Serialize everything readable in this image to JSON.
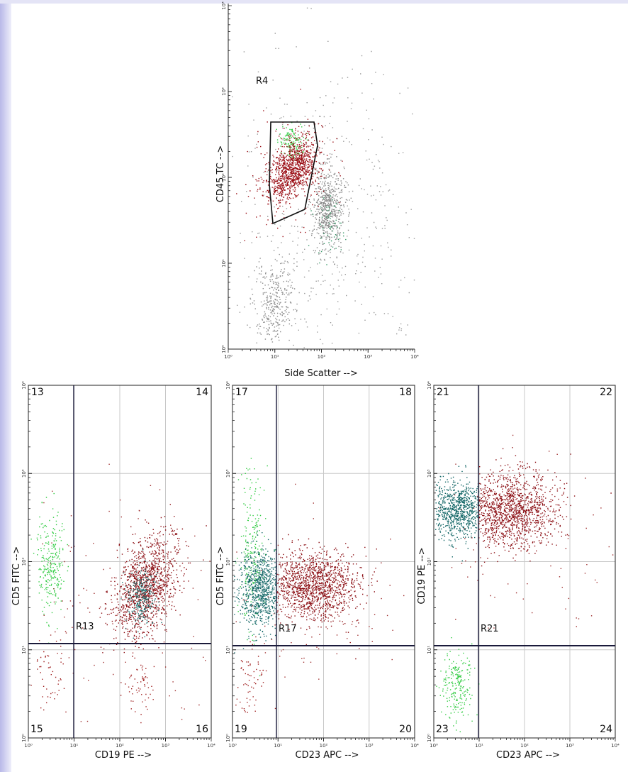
{
  "top_plot": {
    "region_label": "R4",
    "y_axis_label": "CD45 TC -->",
    "x_axis_label": "Side Scatter -->",
    "x_tick_labels": [
      "10⁰",
      "10¹",
      "10²",
      "10³",
      "10⁴"
    ],
    "y_tick_labels": [
      "10⁰",
      "10¹",
      "10²",
      "10³",
      "10⁴"
    ]
  },
  "panels": [
    {
      "quadrants": [
        "13",
        "14",
        "15",
        "16"
      ],
      "region_label": "R13",
      "y_axis_label": "CD5 FITC -->",
      "x_axis_label": "CD19 PE -->",
      "x_tick_labels": [
        "10⁰",
        "10¹",
        "10²",
        "10³",
        "10⁴"
      ],
      "y_tick_labels": [
        "10⁰",
        "10¹",
        "10²",
        "10³",
        "10⁴"
      ]
    },
    {
      "quadrants": [
        "17",
        "18",
        "19",
        "20"
      ],
      "region_label": "R17",
      "y_axis_label": "CD5 FITC -->",
      "x_axis_label": "CD23 APC -->",
      "x_tick_labels": [
        "10⁰",
        "10¹",
        "10²",
        "10³",
        "10⁴"
      ],
      "y_tick_labels": [
        "10⁰",
        "10¹",
        "10²",
        "10³",
        "10⁴"
      ]
    },
    {
      "quadrants": [
        "21",
        "22",
        "23",
        "24"
      ],
      "region_label": "R21",
      "y_axis_label": "CD19 PE -->",
      "x_axis_label": "CD23 APC -->",
      "x_tick_labels": [
        "10⁰",
        "10¹",
        "10²",
        "10³",
        "10⁴"
      ],
      "y_tick_labels": [
        "10⁰",
        "10¹",
        "10²",
        "10³",
        "10⁴"
      ]
    }
  ]
}
